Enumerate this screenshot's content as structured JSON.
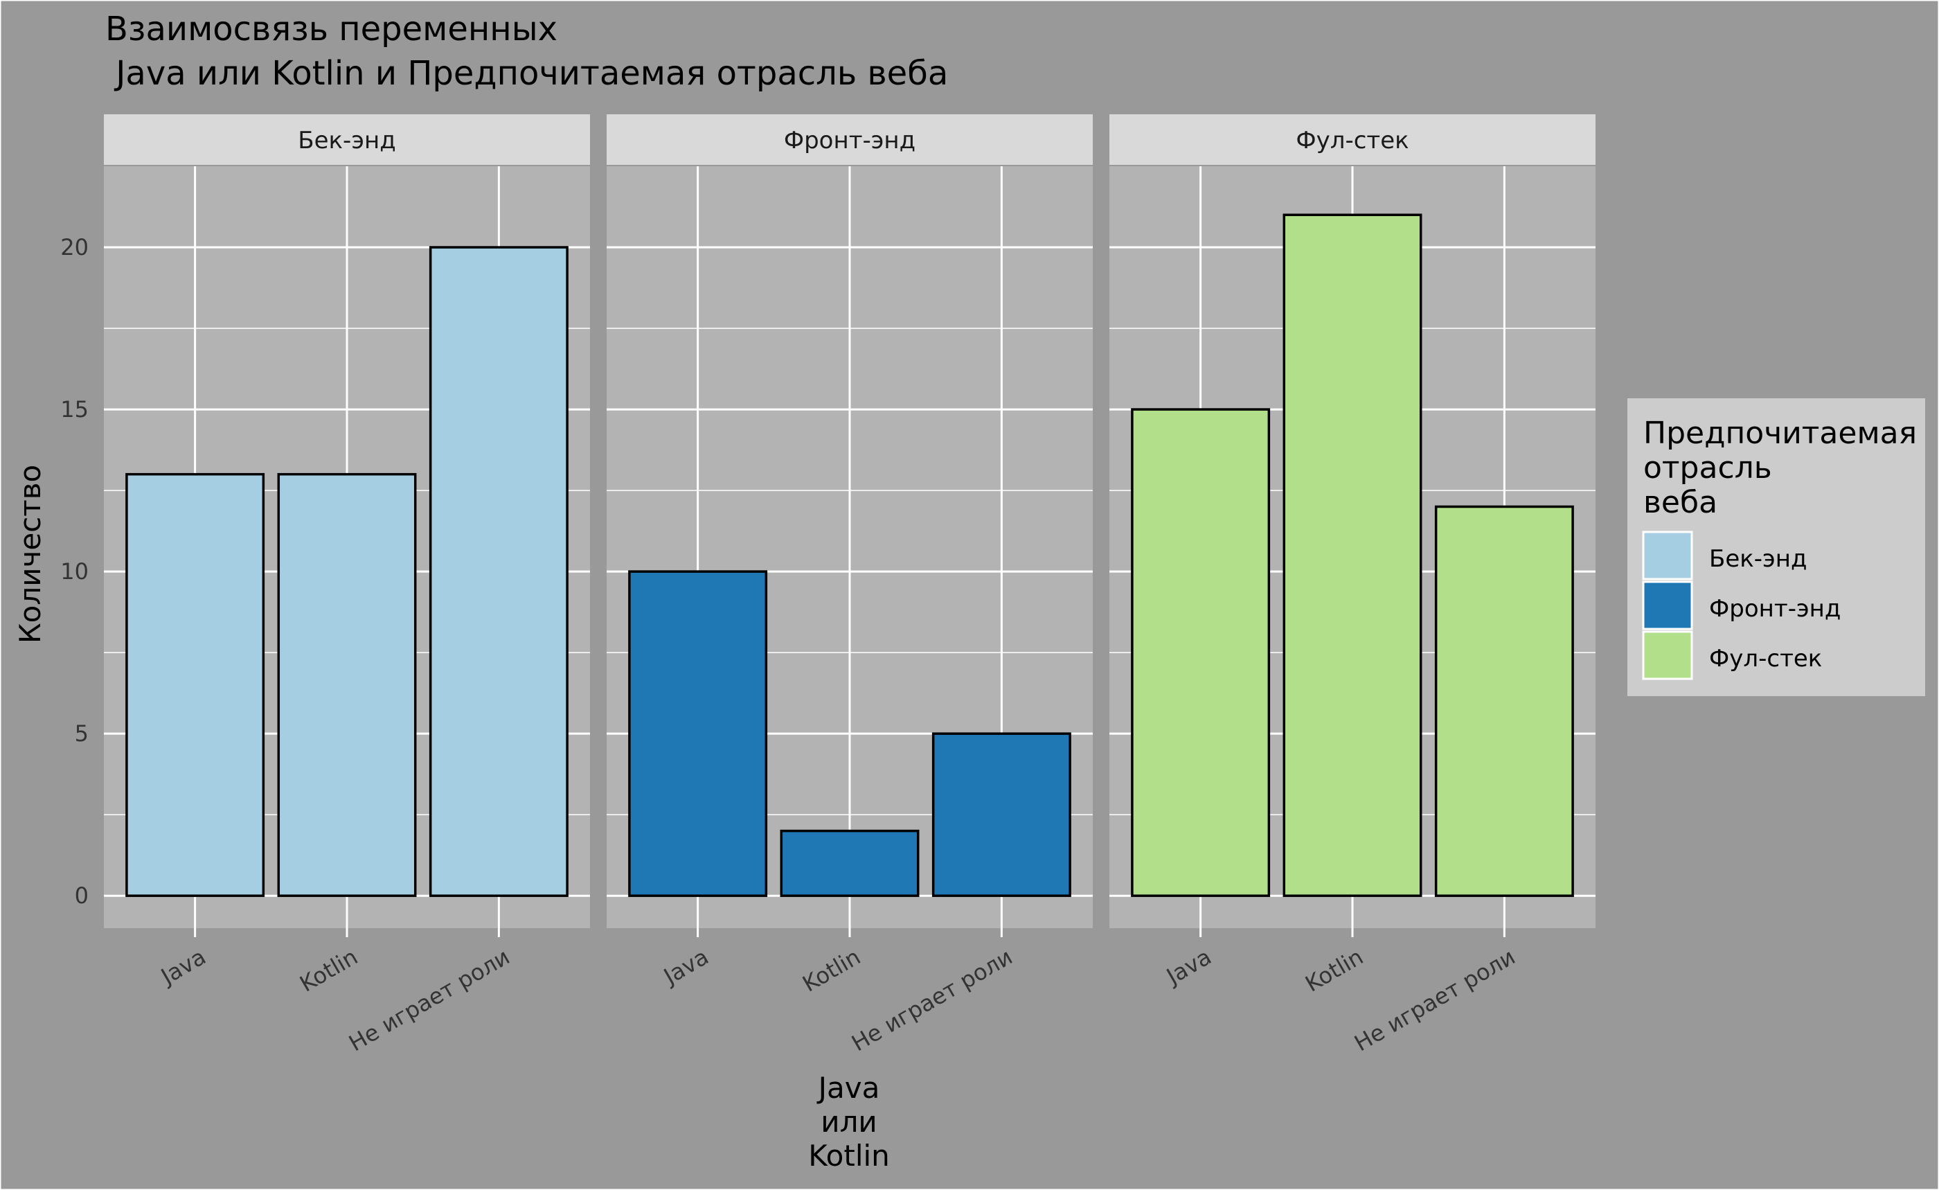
{
  "chart_data": {
    "type": "bar",
    "title_lines": [
      "Взаимосвязь переменных",
      " Java или Kotlin и Предпочитаемая отрасль веба"
    ],
    "ylabel": "Количество",
    "xlabel_lines": [
      "Java",
      "или",
      "Kotlin"
    ],
    "ylim": [
      -1,
      22.5
    ],
    "y_ticks": [
      0,
      5,
      10,
      15,
      20
    ],
    "categories": [
      "Java",
      "Kotlin",
      "Не играет роли"
    ],
    "facets": [
      {
        "name": "Бек-энд",
        "color": "#A6CEE3",
        "values": [
          13,
          13,
          20
        ]
      },
      {
        "name": "Фронт-энд",
        "color": "#1F78B4",
        "values": [
          10,
          2,
          5
        ]
      },
      {
        "name": "Фул-стек",
        "color": "#B2DF8A",
        "values": [
          15,
          21,
          12
        ]
      }
    ],
    "legend": {
      "title_lines": [
        "Предпочитаемая",
        "отрасль",
        "веба"
      ],
      "placement": "right",
      "entries": [
        {
          "label": "Бек-энд",
          "color": "#A6CEE3"
        },
        {
          "label": "Фронт-энд",
          "color": "#1F78B4"
        },
        {
          "label": "Фул-стек",
          "color": "#B2DF8A"
        }
      ]
    },
    "grid": true
  }
}
